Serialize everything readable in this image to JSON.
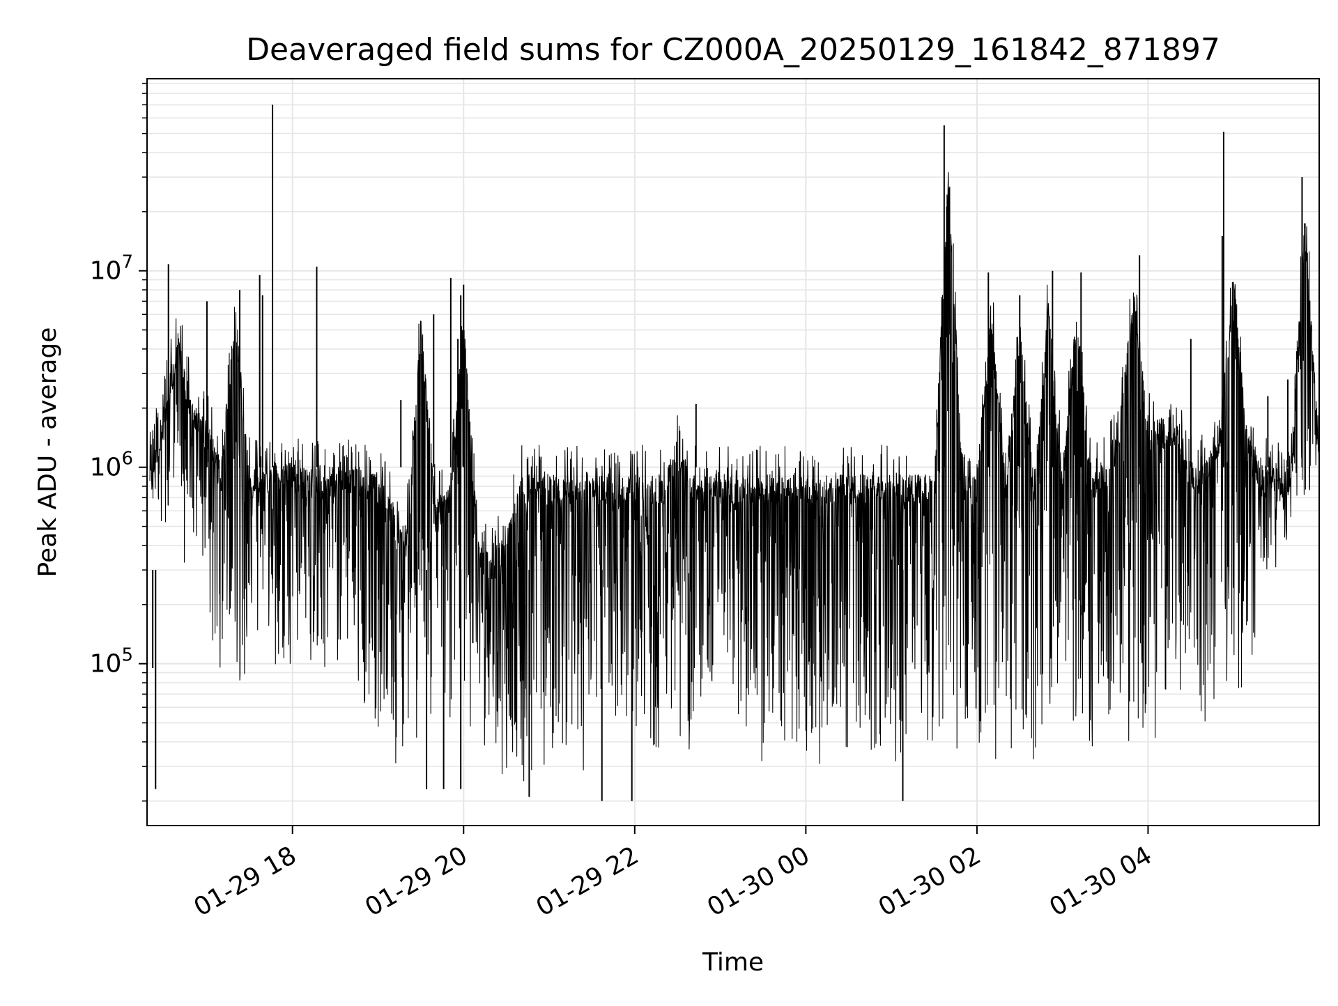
{
  "chart_data": {
    "type": "line",
    "title": "Deaveraged field sums for CZ000A_20250129_161842_871897",
    "xlabel": "Time",
    "ylabel": "Peak ADU - average",
    "yscale": "log",
    "grid": true,
    "colors": {
      "line": "#000000",
      "grid": "#e6e6e6",
      "background": "#ffffff"
    },
    "x_tick_labels": [
      "01-29 18",
      "01-29 20",
      "01-29 22",
      "01-30 00",
      "01-30 02",
      "01-30 04"
    ],
    "x_ticks": [
      "2025-01-29 18:00",
      "2025-01-29 20:00",
      "2025-01-29 22:00",
      "2025-01-30 00:00",
      "2025-01-30 02:00",
      "2025-01-30 04:00"
    ],
    "xlim": [
      "2025-01-29 16:18",
      "2025-01-30 06:00"
    ],
    "y_ticks": [
      {
        "base": "10",
        "exp": "5",
        "value": 100000
      },
      {
        "base": "10",
        "exp": "6",
        "value": 1000000
      },
      {
        "base": "10",
        "exp": "7",
        "value": 10000000
      }
    ],
    "ylim": [
      15000,
      95000000
    ],
    "series": [
      {
        "x": [
          "2025-01-29 16:20",
          "2025-01-29 16:30",
          "2025-01-29 16:40",
          "2025-01-29 16:50",
          "2025-01-29 17:00",
          "2025-01-29 17:10",
          "2025-01-29 17:20",
          "2025-01-29 17:30",
          "2025-01-29 17:40",
          "2025-01-29 17:50",
          "2025-01-29 18:00",
          "2025-01-29 18:10",
          "2025-01-29 18:20",
          "2025-01-29 18:30",
          "2025-01-29 18:40",
          "2025-01-29 18:50",
          "2025-01-29 19:00",
          "2025-01-29 19:10",
          "2025-01-29 19:20",
          "2025-01-29 19:30",
          "2025-01-29 19:40",
          "2025-01-29 19:50",
          "2025-01-29 20:00",
          "2025-01-29 20:10",
          "2025-01-29 20:20",
          "2025-01-29 20:30",
          "2025-01-29 20:40",
          "2025-01-29 20:50",
          "2025-01-29 21:00",
          "2025-01-29 21:10",
          "2025-01-29 21:20",
          "2025-01-29 21:30",
          "2025-01-29 21:40",
          "2025-01-29 21:50",
          "2025-01-29 22:00",
          "2025-01-29 22:10",
          "2025-01-29 22:20",
          "2025-01-29 22:30",
          "2025-01-29 22:40",
          "2025-01-29 22:50",
          "2025-01-29 23:00",
          "2025-01-29 23:10",
          "2025-01-29 23:20",
          "2025-01-29 23:30",
          "2025-01-29 23:40",
          "2025-01-29 23:50",
          "2025-01-30 00:00",
          "2025-01-30 00:10",
          "2025-01-30 00:20",
          "2025-01-30 00:30",
          "2025-01-30 00:40",
          "2025-01-30 00:50",
          "2025-01-30 01:00",
          "2025-01-30 01:10",
          "2025-01-30 01:20",
          "2025-01-30 01:30",
          "2025-01-30 01:40",
          "2025-01-30 01:50",
          "2025-01-30 02:00",
          "2025-01-30 02:10",
          "2025-01-30 02:20",
          "2025-01-30 02:30",
          "2025-01-30 02:40",
          "2025-01-30 02:50",
          "2025-01-30 03:00",
          "2025-01-30 03:10",
          "2025-01-30 03:20",
          "2025-01-30 03:30",
          "2025-01-30 03:40",
          "2025-01-30 03:50",
          "2025-01-30 04:00",
          "2025-01-30 04:10",
          "2025-01-30 04:20",
          "2025-01-30 04:30",
          "2025-01-30 04:40",
          "2025-01-30 04:50",
          "2025-01-30 05:00",
          "2025-01-30 05:10",
          "2025-01-30 05:20",
          "2025-01-30 05:30",
          "2025-01-30 05:40",
          "2025-01-30 05:50",
          "2025-01-30 06:00"
        ],
        "upper": [
          1500000,
          3000000,
          7000000,
          3000000,
          2500000,
          1500000,
          9500000,
          1400000,
          1400000,
          1500000,
          1500000,
          1400000,
          1500000,
          1400000,
          1500000,
          1400000,
          1300000,
          1000000,
          700000,
          9000000,
          1000000,
          1100000,
          8500000,
          600000,
          500000,
          700000,
          1300000,
          1300000,
          1300000,
          1300000,
          1300000,
          1300000,
          1300000,
          1300000,
          1300000,
          1300000,
          1300000,
          2000000,
          1300000,
          1300000,
          1400000,
          1200000,
          1300000,
          1300000,
          1300000,
          1300000,
          1300000,
          1300000,
          1300000,
          1300000,
          1300000,
          1300000,
          1300000,
          1300000,
          1300000,
          1300000,
          55000000,
          1300000,
          1300000,
          9500000,
          1300000,
          7500000,
          1300000,
          10000000,
          1300000,
          9500000,
          1300000,
          1500000,
          2500000,
          12000000,
          2500000,
          2500000,
          2500000,
          1500000,
          1500000,
          2000000,
          15000000,
          2000000,
          1500000,
          1500000,
          1300000,
          30000000,
          1800000
        ],
        "lower": [
          550000,
          500000,
          300000,
          200000,
          90000,
          80000,
          60000,
          70000,
          80000,
          90000,
          100000,
          90000,
          90000,
          80000,
          80000,
          60000,
          40000,
          30000,
          30000,
          40000,
          50000,
          50000,
          45000,
          35000,
          30000,
          25000,
          25000,
          25000,
          25000,
          25000,
          25000,
          30000,
          45000,
          45000,
          40000,
          35000,
          35000,
          35000,
          35000,
          35000,
          35000,
          35000,
          35000,
          30000,
          30000,
          30000,
          30000,
          30000,
          28000,
          28000,
          28000,
          28000,
          28000,
          28000,
          28000,
          28000,
          30000,
          30000,
          30000,
          28000,
          28000,
          28000,
          30000,
          30000,
          35000,
          35000,
          35000,
          35000,
          35000,
          35000,
          35000,
          40000,
          45000,
          40000,
          40000,
          45000,
          60000,
          60000,
          200000,
          300000,
          450000,
          550000,
          650000
        ],
        "spikes": [
          {
            "x": "2025-01-29 16:24",
            "y": 23000
          },
          {
            "x": "2025-01-29 16:22",
            "y": 95000
          },
          {
            "x": "2025-01-29 16:33",
            "y": 10800000
          },
          {
            "x": "2025-01-29 17:00",
            "y": 7000000
          },
          {
            "x": "2025-01-29 17:23",
            "y": 8000000
          },
          {
            "x": "2025-01-29 17:37",
            "y": 9500000
          },
          {
            "x": "2025-01-29 17:39",
            "y": 7500000
          },
          {
            "x": "2025-01-29 17:46",
            "y": 70000000
          },
          {
            "x": "2025-01-29 18:17",
            "y": 10500000
          },
          {
            "x": "2025-01-29 19:16",
            "y": 2200000
          },
          {
            "x": "2025-01-29 19:39",
            "y": 6000000
          },
          {
            "x": "2025-01-29 19:34",
            "y": 23000
          },
          {
            "x": "2025-01-29 19:46",
            "y": 23000
          },
          {
            "x": "2025-01-29 19:51",
            "y": 9200000
          },
          {
            "x": "2025-01-29 19:58",
            "y": 7500000
          },
          {
            "x": "2025-01-29 19:58",
            "y": 23000
          },
          {
            "x": "2025-01-29 19:56",
            "y": 4500000
          },
          {
            "x": "2025-01-29 20:00",
            "y": 8500000
          },
          {
            "x": "2025-01-29 20:46",
            "y": 21000
          },
          {
            "x": "2025-01-29 21:37",
            "y": 20000
          },
          {
            "x": "2025-01-29 21:58",
            "y": 20000
          },
          {
            "x": "2025-01-29 22:43",
            "y": 2100000
          },
          {
            "x": "2025-01-30 01:08",
            "y": 20000
          },
          {
            "x": "2025-01-30 01:37",
            "y": 55000000
          },
          {
            "x": "2025-01-30 02:08",
            "y": 9800000
          },
          {
            "x": "2025-01-30 02:30",
            "y": 7500000
          },
          {
            "x": "2025-01-30 02:53",
            "y": 10000000
          },
          {
            "x": "2025-01-30 03:13",
            "y": 9800000
          },
          {
            "x": "2025-01-30 03:54",
            "y": 12000000
          },
          {
            "x": "2025-01-30 04:30",
            "y": 4500000
          },
          {
            "x": "2025-01-30 04:52",
            "y": 15000000
          },
          {
            "x": "2025-01-30 04:53",
            "y": 51000000
          },
          {
            "x": "2025-01-30 05:24",
            "y": 2300000
          },
          {
            "x": "2025-01-30 05:38",
            "y": 2800000
          },
          {
            "x": "2025-01-30 05:48",
            "y": 30000000
          }
        ]
      }
    ]
  }
}
